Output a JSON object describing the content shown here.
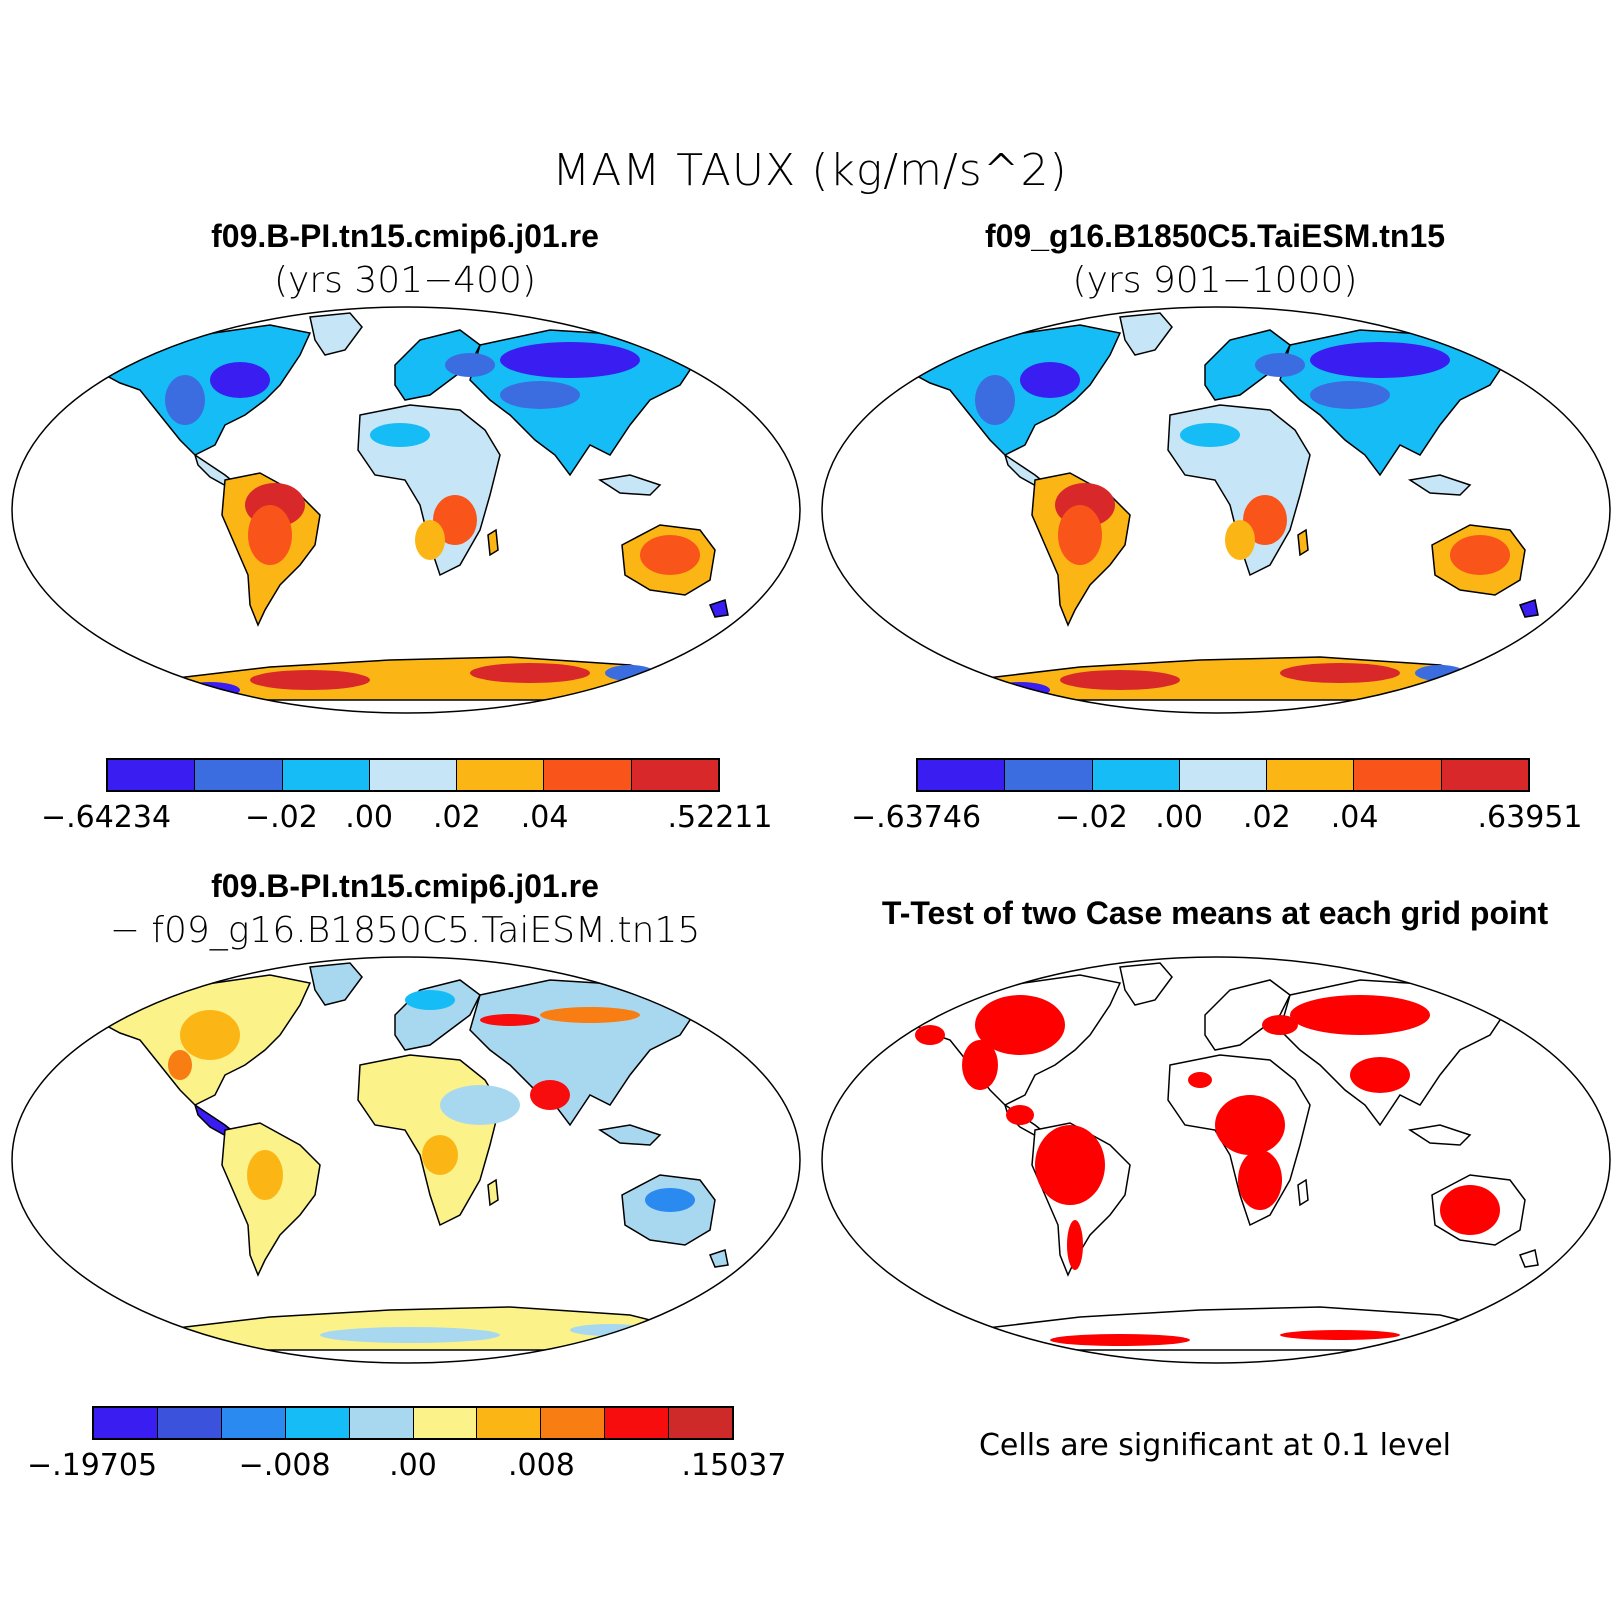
{
  "title": "MAM TAUX (kg/m/s^2)",
  "panels": [
    {
      "title": "f09.B-PI.tn15.cmip6.j01.re",
      "subtitle": "(yrs 301−400)",
      "colors": [
        "#3a1df0",
        "#3b6de0",
        "#16bcf5",
        "#c6e6f7",
        "#fbb615",
        "#f9541a",
        "#d8282a"
      ],
      "ticks": [
        "−.64234",
        "−.02",
        ".00",
        ".02",
        ".04",
        ".52211"
      ]
    },
    {
      "title": "f09_g16.B1850C5.TaiESM.tn15",
      "subtitle": "(yrs 901−1000)",
      "colors": [
        "#3a1df0",
        "#3b6de0",
        "#16bcf5",
        "#c6e6f7",
        "#fbb615",
        "#f9541a",
        "#d8282a"
      ],
      "ticks": [
        "−.63746",
        "−.02",
        ".00",
        ".02",
        ".04",
        ".63951"
      ]
    },
    {
      "title": "f09.B-PI.tn15.cmip6.j01.re",
      "subtitle": "− f09_g16.B1850C5.TaiESM.tn15",
      "colors": [
        "#3a1df0",
        "#3a52dc",
        "#2b8af0",
        "#16bcf5",
        "#a8d8f0",
        "#fbf28a",
        "#fbb615",
        "#f87d12",
        "#f70d0d",
        "#cf2a2a"
      ],
      "ticks": [
        "−.19705",
        "−.008",
        ".00",
        ".008",
        ".15037"
      ]
    },
    {
      "title": "T-Test of two Case means at each grid point",
      "note": "Cells are significant at 0.1 level",
      "color": "#ff0000"
    }
  ]
}
